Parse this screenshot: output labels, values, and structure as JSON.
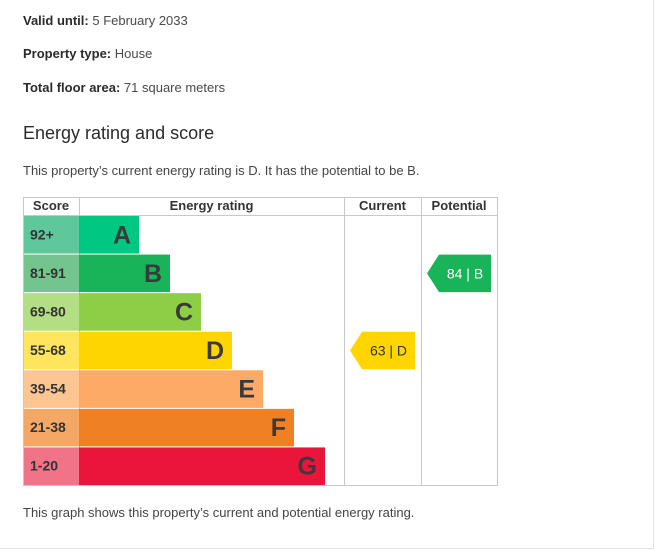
{
  "details": {
    "valid_label": "Valid until:",
    "valid_value": "5 February 2033",
    "type_label": "Property type:",
    "type_value": "House",
    "area_label": "Total floor area:",
    "area_value": "71 square meters"
  },
  "section": {
    "heading": "Energy rating and score",
    "intro": "This property’s current energy rating is D. It has the potential to be B.",
    "footer": "This graph shows this property’s current and potential energy rating."
  },
  "chart_data": {
    "type": "table",
    "headers": [
      "Score",
      "Energy rating",
      "Current",
      "Potential"
    ],
    "bands": [
      {
        "score": "92+",
        "letter": "A",
        "color": "#00c781",
        "score_bg": "#5fc89a"
      },
      {
        "score": "81-91",
        "letter": "B",
        "color": "#19b459",
        "score_bg": "#73c48d"
      },
      {
        "score": "69-80",
        "letter": "C",
        "color": "#8dce46",
        "score_bg": "#b3de83"
      },
      {
        "score": "55-68",
        "letter": "D",
        "color": "#ffd500",
        "score_bg": "#ffe55e"
      },
      {
        "score": "39-54",
        "letter": "E",
        "color": "#fcaa65",
        "score_bg": "#fdc592"
      },
      {
        "score": "21-38",
        "letter": "F",
        "color": "#ef8023",
        "score_bg": "#f5a865"
      },
      {
        "score": "1-20",
        "letter": "G",
        "color": "#e9153b",
        "score_bg": "#f07388"
      }
    ],
    "current": {
      "label": "63 | D",
      "score": 63,
      "band": "D",
      "color": "#ffd500"
    },
    "potential": {
      "label": "84 | B",
      "score": 84,
      "band": "B",
      "color": "#19b459"
    }
  }
}
